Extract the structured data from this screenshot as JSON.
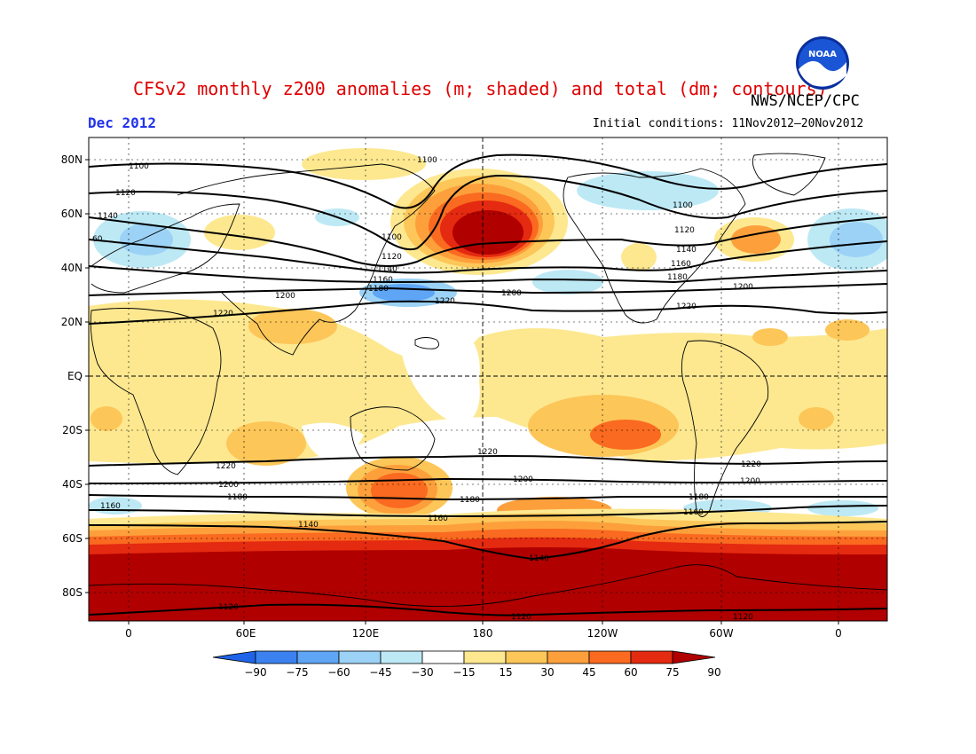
{
  "header": {
    "title": "CFSv2 monthly z200 anomalies (m; shaded) and total (dm; contours)",
    "organization": "NWS/NCEP/CPC",
    "valid_month": "Dec 2012",
    "initial_conditions": "Initial conditions: 11Nov2012–20Nov2012",
    "logo_icon": "noaa-logo-icon",
    "logo_text": "NOAA"
  },
  "map": {
    "lat_labels": [
      "80N",
      "60N",
      "40N",
      "20N",
      "EQ",
      "20S",
      "40S",
      "60S",
      "80S"
    ],
    "lon_labels": [
      "0",
      "60E",
      "120E",
      "180",
      "120W",
      "60W",
      "0"
    ],
    "contour_labels": [
      "1100",
      "1120",
      "1140",
      "60",
      "1100",
      "1120",
      "1140",
      "1160",
      "1180",
      "1200",
      "1220",
      "1200",
      "1220",
      "1100",
      "1120",
      "1140",
      "1160",
      "1180",
      "1200",
      "1220",
      "1220",
      "1200",
      "1180",
      "1160",
      "1140",
      "1220",
      "1200",
      "1180",
      "1160",
      "1220",
      "1200",
      "1180",
      "1160",
      "1140",
      "1120",
      "1120",
      "1120",
      "1100"
    ]
  },
  "colorbar": {
    "ticks": [
      "−90",
      "−75",
      "−60",
      "−45",
      "−30",
      "−15",
      "15",
      "30",
      "45",
      "60",
      "75",
      "90"
    ],
    "colors": [
      "#1f64e8",
      "#3b82f0",
      "#5ea5f5",
      "#9cd2f6",
      "#bde9f5",
      "#ffffff",
      "#fde890",
      "#fdc658",
      "#fda03c",
      "#fa6a20",
      "#e42a10",
      "#b00000"
    ]
  },
  "palette": {
    "land_outline": "#000000",
    "title_color": "#e00000",
    "date_color": "#2233ee"
  }
}
